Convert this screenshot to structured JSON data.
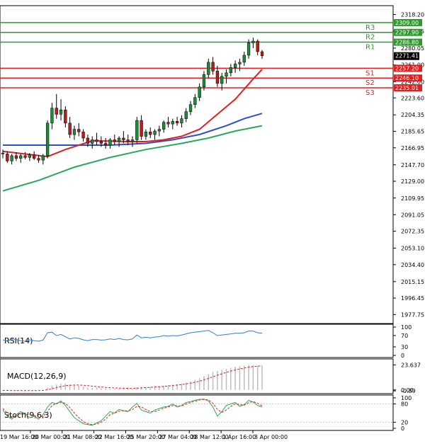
{
  "chart_data": {
    "type": "candlestick",
    "title": "",
    "main": {
      "ylim": [
        1970,
        2325
      ],
      "y_ticks": [
        "2318.20",
        "2299.15",
        "2280.05",
        "2261.00",
        "2242.00",
        "2223.60",
        "2204.35",
        "2185.65",
        "2166.95",
        "2147.70",
        "2129.00",
        "2109.95",
        "2091.05",
        "2072.35",
        "2053.10",
        "2034.40",
        "2015.15",
        "1996.45",
        "1977.75"
      ],
      "y_tick_values": [
        2318.2,
        2299.15,
        2280.05,
        2261.0,
        2242.0,
        2223.6,
        2204.35,
        2185.65,
        2166.95,
        2147.7,
        2129.0,
        2109.95,
        2091.05,
        2072.35,
        2053.1,
        2034.4,
        2015.15,
        1996.45,
        1977.75
      ],
      "x_labels": [
        "19 Mar 16:00",
        "20 Mar 00:00",
        "21 Mar 08:00",
        "22 Mar 16:00",
        "25 Mar 20:00",
        "27 Mar 04:00",
        "28 Mar 12:00",
        "1 Apr 16:00",
        "3 Apr 00:00"
      ],
      "current_price": "2271.41",
      "levels": [
        {
          "name": "R3",
          "value": 2309.0,
          "label": "2309.00",
          "kind": "resistance",
          "color": "#2e9a2e"
        },
        {
          "name": "R2",
          "value": 2297.9,
          "label": "2297.90",
          "kind": "resistance",
          "color": "#2e9a2e"
        },
        {
          "name": "R1",
          "value": 2286.8,
          "label": "2286.80",
          "kind": "resistance",
          "color": "#2e9a2e"
        },
        {
          "name": "S1",
          "value": 2257.2,
          "label": "2257.20",
          "kind": "support",
          "color": "#e02020"
        },
        {
          "name": "S2",
          "value": 2246.1,
          "label": "2246.10",
          "kind": "support",
          "color": "#e02020"
        },
        {
          "name": "S3",
          "value": 2235.01,
          "label": "2235.01",
          "kind": "support",
          "color": "#e02020"
        }
      ],
      "candles": [
        [
          2161,
          2165,
          2155,
          2160
        ],
        [
          2160,
          2163,
          2150,
          2152
        ],
        [
          2152,
          2160,
          2148,
          2158
        ],
        [
          2158,
          2162,
          2152,
          2155
        ],
        [
          2155,
          2160,
          2150,
          2158
        ],
        [
          2158,
          2162,
          2154,
          2156
        ],
        [
          2156,
          2161,
          2152,
          2159
        ],
        [
          2159,
          2163,
          2153,
          2155
        ],
        [
          2155,
          2159,
          2150,
          2153
        ],
        [
          2153,
          2160,
          2148,
          2158
        ],
        [
          2158,
          2198,
          2155,
          2195
        ],
        [
          2195,
          2218,
          2188,
          2212
        ],
        [
          2212,
          2228,
          2200,
          2205
        ],
        [
          2205,
          2222,
          2198,
          2210
        ],
        [
          2210,
          2214,
          2190,
          2195
        ],
        [
          2195,
          2202,
          2178,
          2182
        ],
        [
          2182,
          2192,
          2176,
          2188
        ],
        [
          2188,
          2195,
          2180,
          2185
        ],
        [
          2185,
          2188,
          2174,
          2178
        ],
        [
          2178,
          2182,
          2168,
          2172
        ],
        [
          2172,
          2180,
          2166,
          2176
        ],
        [
          2176,
          2184,
          2170,
          2174
        ],
        [
          2174,
          2180,
          2168,
          2172
        ],
        [
          2172,
          2178,
          2166,
          2170
        ],
        [
          2170,
          2178,
          2166,
          2176
        ],
        [
          2176,
          2182,
          2170,
          2174
        ],
        [
          2174,
          2180,
          2168,
          2178
        ],
        [
          2178,
          2186,
          2172,
          2176
        ],
        [
          2176,
          2182,
          2170,
          2174
        ],
        [
          2174,
          2180,
          2168,
          2176
        ],
        [
          2176,
          2202,
          2172,
          2198
        ],
        [
          2198,
          2204,
          2176,
          2180
        ],
        [
          2180,
          2188,
          2176,
          2185
        ],
        [
          2185,
          2190,
          2178,
          2182
        ],
        [
          2182,
          2188,
          2176,
          2186
        ],
        [
          2186,
          2192,
          2180,
          2188
        ],
        [
          2188,
          2198,
          2184,
          2196
        ],
        [
          2196,
          2202,
          2190,
          2194
        ],
        [
          2194,
          2200,
          2188,
          2197
        ],
        [
          2197,
          2202,
          2192,
          2195
        ],
        [
          2195,
          2204,
          2190,
          2200
        ],
        [
          2200,
          2212,
          2196,
          2208
        ],
        [
          2208,
          2220,
          2204,
          2216
        ],
        [
          2216,
          2228,
          2212,
          2224
        ],
        [
          2224,
          2240,
          2220,
          2236
        ],
        [
          2236,
          2254,
          2232,
          2250
        ],
        [
          2250,
          2268,
          2246,
          2264
        ],
        [
          2264,
          2270,
          2250,
          2254
        ],
        [
          2254,
          2260,
          2236,
          2240
        ],
        [
          2240,
          2252,
          2232,
          2248
        ],
        [
          2248,
          2256,
          2240,
          2252
        ],
        [
          2252,
          2262,
          2248,
          2258
        ],
        [
          2258,
          2266,
          2252,
          2262
        ],
        [
          2262,
          2268,
          2254,
          2264
        ],
        [
          2264,
          2276,
          2260,
          2272
        ],
        [
          2272,
          2290,
          2268,
          2286
        ],
        [
          2286,
          2292,
          2280,
          2288
        ],
        [
          2288,
          2290,
          2272,
          2276
        ],
        [
          2276,
          2278,
          2268,
          2271.41
        ]
      ],
      "ma_fast": {
        "name": "MA fast",
        "color": "#e02020",
        "points": [
          [
            0,
            2163
          ],
          [
            10,
            2157
          ],
          [
            14,
            2165
          ],
          [
            20,
            2175
          ],
          [
            28,
            2174
          ],
          [
            32,
            2174
          ],
          [
            36,
            2176
          ],
          [
            40,
            2180
          ],
          [
            44,
            2188
          ],
          [
            48,
            2205
          ],
          [
            52,
            2222
          ],
          [
            56,
            2245
          ],
          [
            58,
            2256
          ]
        ]
      },
      "ma_mid": {
        "name": "MA mid",
        "color": "#2b4fd1",
        "points": [
          [
            0,
            2170
          ],
          [
            10,
            2170
          ],
          [
            16,
            2170
          ],
          [
            24,
            2170
          ],
          [
            32,
            2172
          ],
          [
            38,
            2176
          ],
          [
            44,
            2182
          ],
          [
            50,
            2192
          ],
          [
            54,
            2200
          ],
          [
            58,
            2206
          ]
        ]
      },
      "ma_slow": {
        "name": "MA slow",
        "color": "#2aa85a",
        "points": [
          [
            0,
            2118
          ],
          [
            8,
            2130
          ],
          [
            16,
            2145
          ],
          [
            24,
            2156
          ],
          [
            32,
            2165
          ],
          [
            40,
            2172
          ],
          [
            46,
            2178
          ],
          [
            52,
            2186
          ],
          [
            58,
            2192
          ]
        ]
      }
    },
    "rsi": {
      "label": "RSI(14)",
      "ylim": [
        0,
        100
      ],
      "ticks": [
        "100",
        "70",
        "30",
        "0"
      ],
      "tick_values": [
        100,
        70,
        30,
        0
      ],
      "color": "#2b7fd1",
      "values": [
        55,
        50,
        58,
        56,
        52,
        50,
        55,
        52,
        50,
        54,
        80,
        82,
        70,
        74,
        66,
        58,
        62,
        60,
        55,
        52,
        56,
        56,
        54,
        55,
        58,
        56,
        60,
        56,
        55,
        58,
        72,
        62,
        64,
        62,
        65,
        66,
        70,
        68,
        70,
        69,
        72,
        76,
        80,
        82,
        84,
        86,
        88,
        80,
        70,
        72,
        74,
        76,
        78,
        78,
        80,
        86,
        86,
        80,
        78
      ]
    },
    "macd": {
      "label": "MACD(12,26,9)",
      "ticks": [
        "23.637",
        "0.00",
        "-0.89"
      ],
      "tick_values": [
        23.637,
        0.0,
        -0.89
      ],
      "ylim": [
        -1.5,
        26
      ],
      "histogram_color": "#bdbdbd",
      "signal_color": "#e02020",
      "histogram": [
        -0.6,
        -0.7,
        -0.8,
        -0.8,
        -0.7,
        -0.7,
        -0.6,
        -0.6,
        -0.5,
        -0.4,
        2,
        4,
        5,
        6,
        6,
        5,
        5,
        4,
        3,
        2,
        2,
        2,
        1.6,
        1.4,
        1.2,
        1.2,
        1.2,
        1.2,
        1.1,
        1.1,
        2.5,
        2.6,
        2.8,
        3,
        3.2,
        3.5,
        4,
        4.5,
        5,
        5.5,
        6,
        7,
        8,
        9.5,
        11,
        13,
        15,
        17,
        18,
        19,
        20,
        21,
        22,
        22.5,
        23,
        23.6,
        23.4,
        23,
        22.6
      ],
      "signal": [
        -0.4,
        -0.5,
        -0.6,
        -0.7,
        -0.7,
        -0.7,
        -0.7,
        -0.6,
        -0.6,
        -0.5,
        0.2,
        1.2,
        2.2,
        3.2,
        4,
        4.4,
        4.6,
        4.6,
        4.4,
        4,
        3.6,
        3.2,
        2.8,
        2.4,
        2.1,
        1.9,
        1.7,
        1.6,
        1.5,
        1.4,
        1.6,
        1.9,
        2.2,
        2.4,
        2.7,
        3,
        3.3,
        3.7,
        4.1,
        4.6,
        5.1,
        5.7,
        6.4,
        7.3,
        8.3,
        9.5,
        10.9,
        12.4,
        13.9,
        15.3,
        16.6,
        17.8,
        18.9,
        19.9,
        20.7,
        21.5,
        22.1,
        22.5,
        22.7
      ]
    },
    "stoch": {
      "label": "Stoch(9,6,3)",
      "ticks": [
        "100",
        "80",
        "20",
        "0"
      ],
      "tick_values": [
        100,
        80,
        20,
        0
      ],
      "k_color": "#2aa85a",
      "d_color": "#e02020",
      "k": [
        60,
        40,
        30,
        45,
        55,
        48,
        35,
        40,
        30,
        45,
        70,
        85,
        80,
        90,
        75,
        55,
        35,
        25,
        15,
        12,
        10,
        18,
        25,
        40,
        55,
        50,
        62,
        58,
        55,
        70,
        82,
        60,
        55,
        50,
        60,
        65,
        70,
        72,
        80,
        70,
        75,
        85,
        88,
        92,
        95,
        96,
        90,
        70,
        40,
        55,
        75,
        80,
        85,
        72,
        78,
        92,
        86,
        75,
        70
      ],
      "d": [
        65,
        50,
        38,
        40,
        48,
        50,
        45,
        42,
        36,
        40,
        55,
        75,
        82,
        86,
        82,
        68,
        50,
        35,
        22,
        15,
        12,
        14,
        20,
        30,
        45,
        50,
        56,
        58,
        57,
        62,
        72,
        70,
        62,
        55,
        55,
        60,
        66,
        70,
        75,
        74,
        73,
        80,
        85,
        89,
        93,
        95,
        93,
        82,
        62,
        52,
        60,
        72,
        80,
        78,
        76,
        84,
        88,
        82,
        74
      ]
    }
  }
}
